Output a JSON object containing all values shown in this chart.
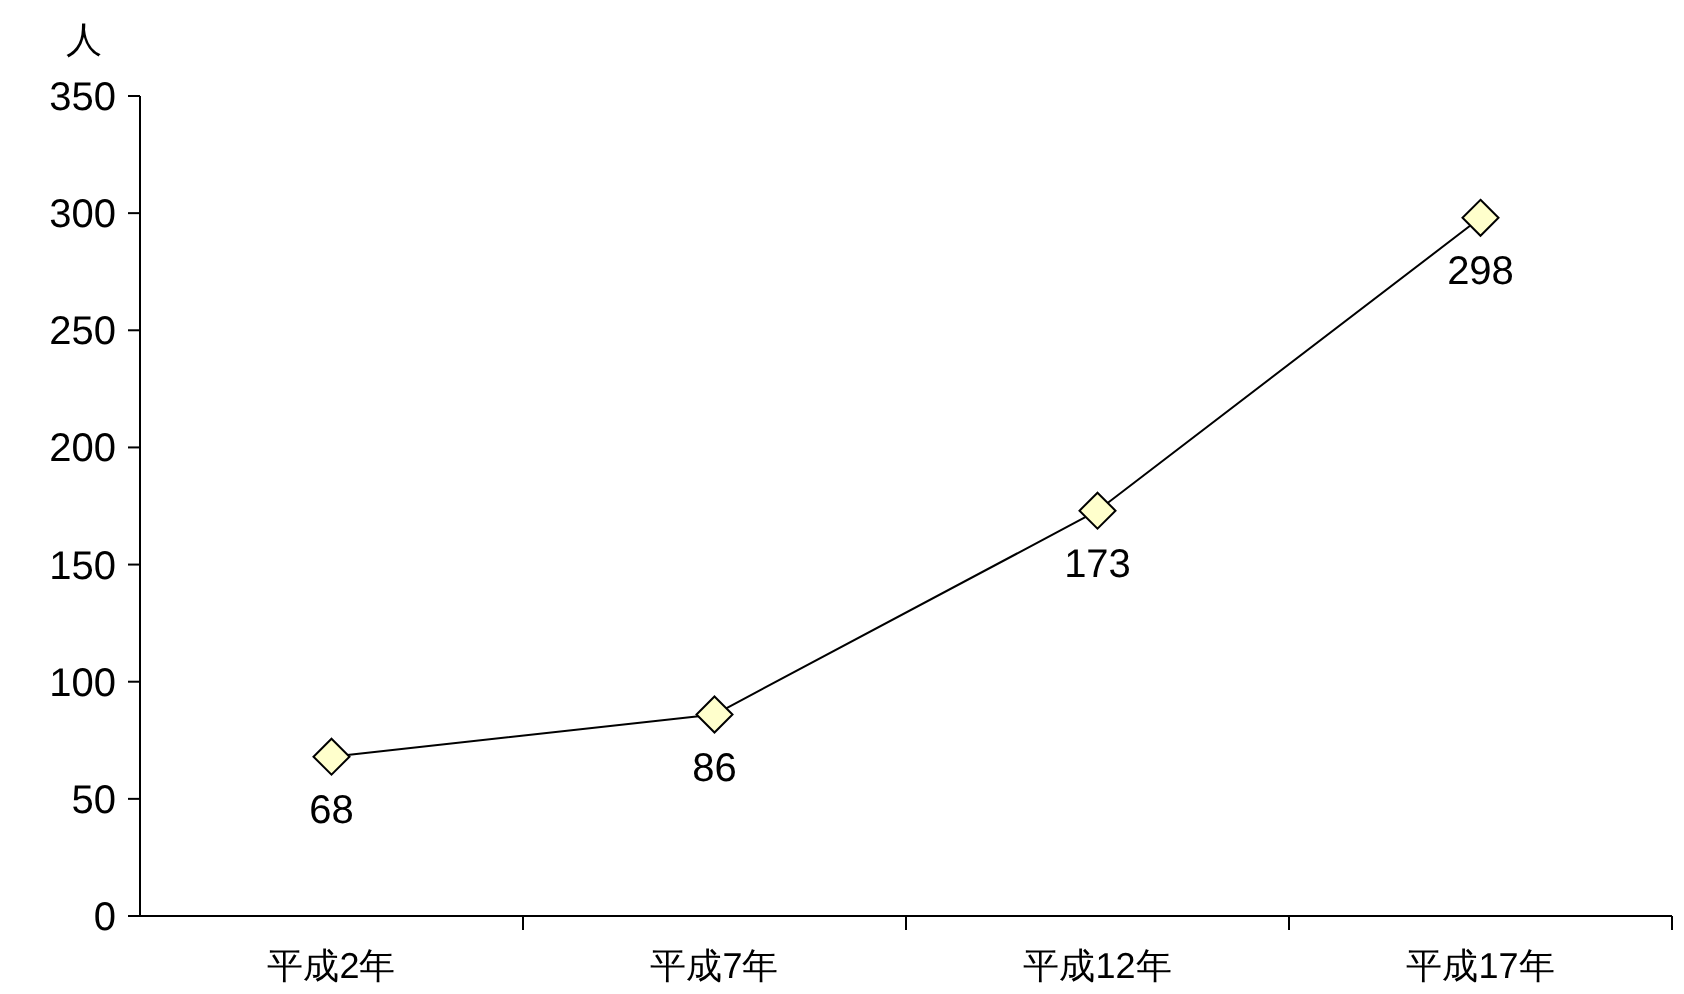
{
  "chart_data": {
    "type": "line",
    "ylabel": "人",
    "categories": [
      "平成2年",
      "平成7年",
      "平成12年",
      "平成17年"
    ],
    "series": [
      {
        "color": "#000000",
        "values": [
          68,
          86,
          173,
          298
        ]
      }
    ],
    "ylim": [
      0,
      350
    ],
    "yticks": [
      0,
      50,
      100,
      150,
      200,
      250,
      300,
      350
    ],
    "marker": "diamond",
    "data_labels": true,
    "grid": false
  }
}
